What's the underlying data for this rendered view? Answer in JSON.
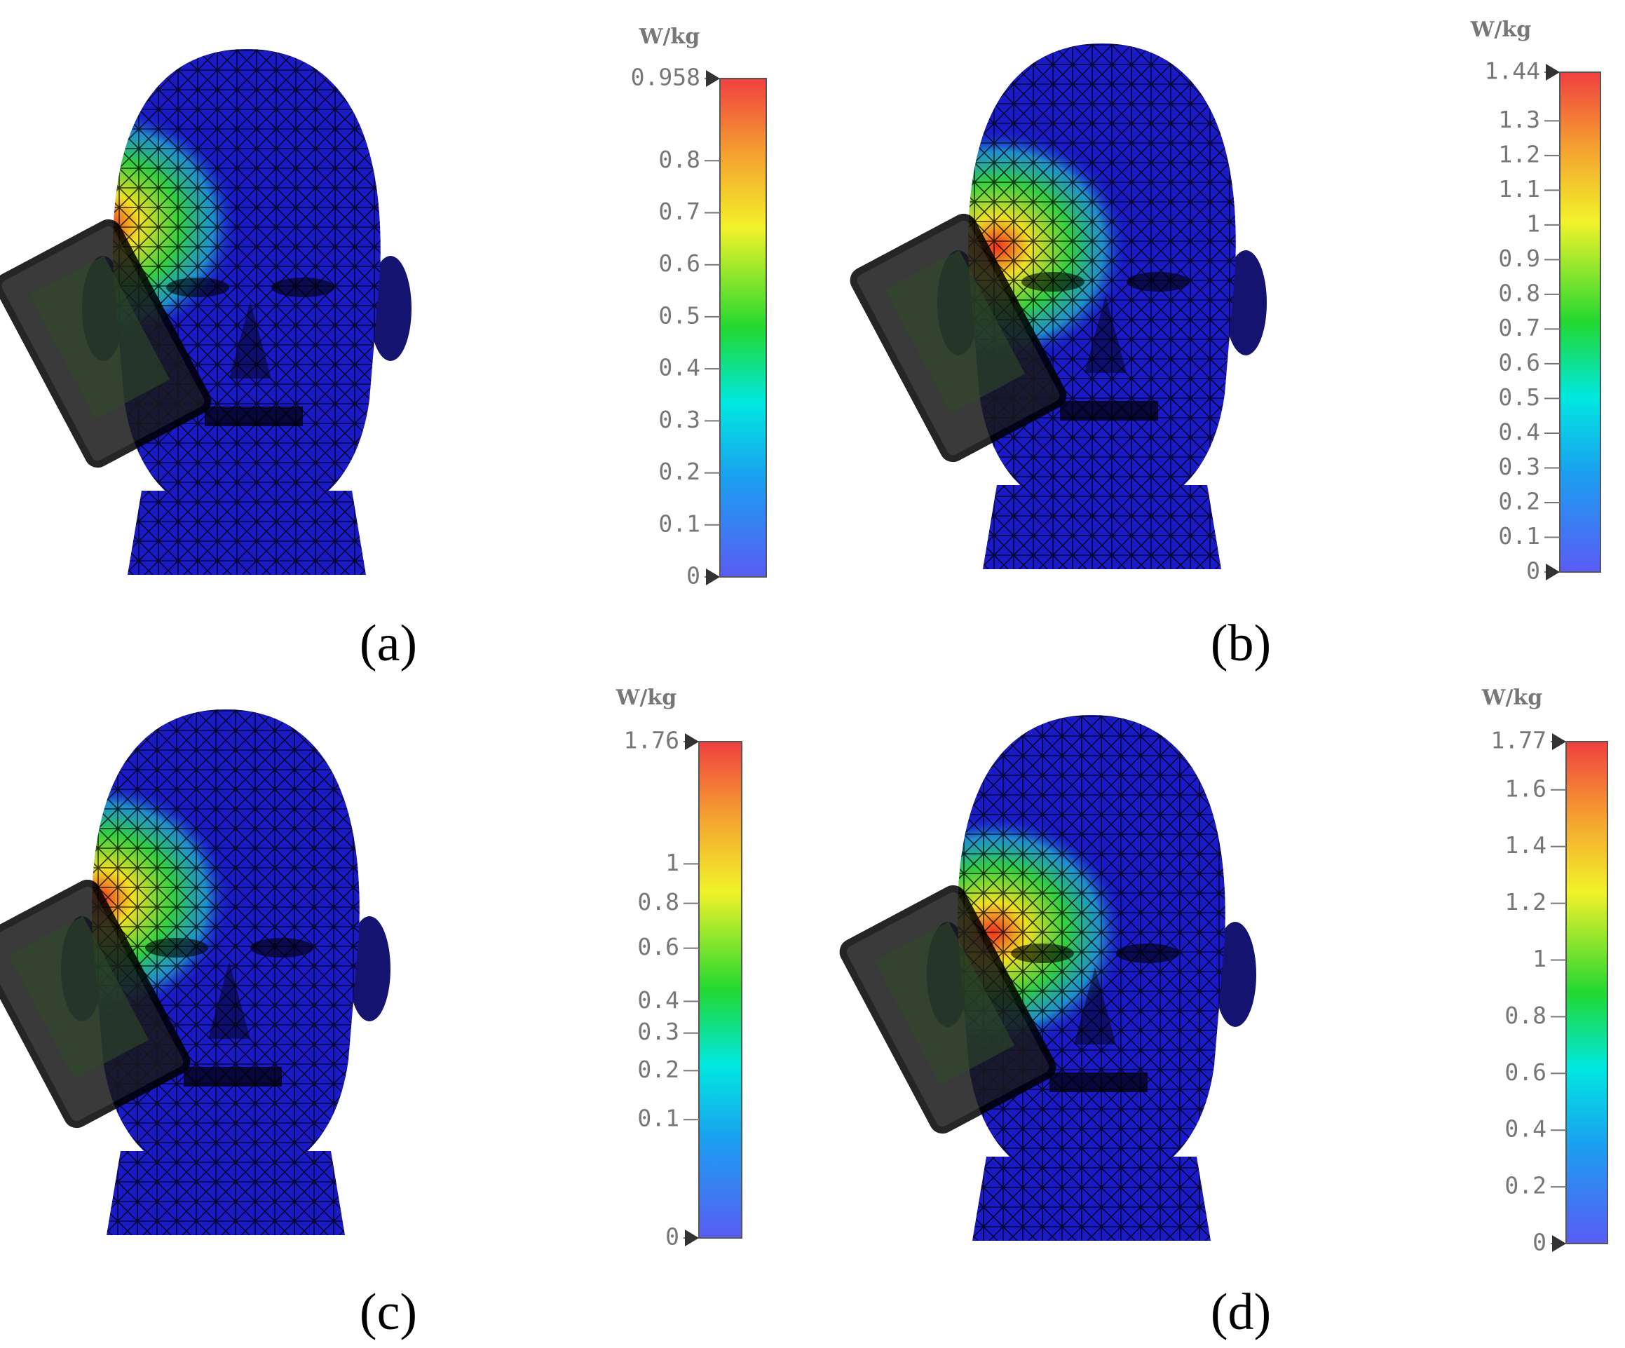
{
  "panels": [
    {
      "label": "(a)",
      "unit": "W/kg",
      "scale": "linear",
      "lim": [
        0,
        0.958
      ],
      "ticks": [
        0,
        0.1,
        0.2,
        0.3,
        0.4,
        0.5,
        0.6,
        0.7,
        0.8,
        0.958
      ]
    },
    {
      "label": "(b)",
      "unit": "W/kg",
      "scale": "linear",
      "lim": [
        0,
        1.44
      ],
      "ticks": [
        0,
        0.1,
        0.2,
        0.3,
        0.4,
        0.5,
        0.6,
        0.7,
        0.8,
        0.9,
        1,
        1.1,
        1.2,
        1.3,
        1.44
      ]
    },
    {
      "label": "(c)",
      "unit": "W/kg",
      "scale": "sqrt",
      "lim": [
        0,
        1.76
      ],
      "ticks": [
        0,
        0.1,
        0.2,
        0.3,
        0.4,
        0.6,
        0.8,
        1,
        1.76
      ]
    },
    {
      "label": "(d)",
      "unit": "W/kg",
      "scale": "linear",
      "lim": [
        0,
        1.77
      ],
      "ticks": [
        0,
        0.2,
        0.4,
        0.6,
        0.8,
        1,
        1.2,
        1.4,
        1.6,
        1.77
      ]
    }
  ]
}
